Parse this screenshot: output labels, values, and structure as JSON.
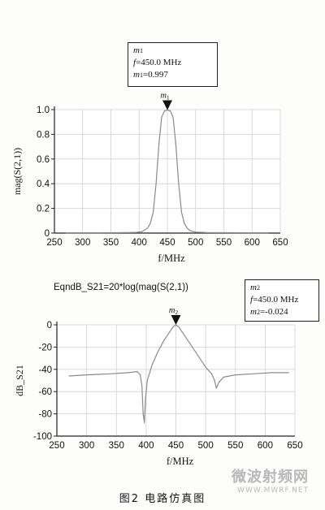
{
  "chart_data": [
    {
      "type": "line",
      "xlabel": "f/MHz",
      "ylabel": "mag(S(2,1))",
      "xlim": [
        250,
        650
      ],
      "ylim": [
        0,
        1.0
      ],
      "xticks": [
        "250",
        "300",
        "350",
        "400",
        "450",
        "500",
        "550",
        "600",
        "650"
      ],
      "yticks": [
        "0",
        "0.2",
        "0.4",
        "0.6",
        "0.8",
        "1.0"
      ],
      "grid": true,
      "series": [
        {
          "x": [
            270,
            300,
            330,
            360,
            380,
            395,
            405,
            415,
            420,
            425,
            430,
            435,
            440,
            445,
            450,
            455,
            460,
            465,
            470,
            475,
            480,
            485,
            490,
            500,
            520,
            550,
            600,
            630
          ],
          "values": [
            0.002,
            0.002,
            0.002,
            0.003,
            0.004,
            0.006,
            0.012,
            0.04,
            0.08,
            0.17,
            0.4,
            0.72,
            0.94,
            0.99,
            0.997,
            0.99,
            0.94,
            0.72,
            0.4,
            0.17,
            0.08,
            0.04,
            0.02,
            0.008,
            0.004,
            0.003,
            0.002,
            0.002
          ]
        }
      ],
      "marker": {
        "name": "m1",
        "name_label": "m",
        "name_sub": "1",
        "freq_label": "f",
        "freq_text": "=450.0  MHz",
        "value_label": "m",
        "value_sub": "1",
        "value_text": "=0.997",
        "x": 450,
        "y": 0.997
      }
    },
    {
      "type": "line",
      "equation": "EqndB_S21=20*log(mag(S(2,1))",
      "xlabel": "f/MHz",
      "ylabel": "dB_S21",
      "xlim": [
        250,
        650
      ],
      "ylim": [
        -100,
        0
      ],
      "xticks": [
        "250",
        "300",
        "350",
        "400",
        "450",
        "500",
        "550",
        "600",
        "650"
      ],
      "yticks": [
        "0",
        "-20",
        "-40",
        "-60",
        "-80",
        "-100"
      ],
      "grid": true,
      "series": [
        {
          "x": [
            270,
            300,
            340,
            370,
            385,
            390,
            393,
            395,
            397,
            399,
            402,
            410,
            420,
            430,
            440,
            445,
            450,
            455,
            460,
            470,
            480,
            490,
            500,
            510,
            515,
            518,
            522,
            530,
            550,
            580,
            610,
            640
          ],
          "values": [
            -46,
            -45,
            -44,
            -43,
            -42,
            -45,
            -55,
            -80,
            -88,
            -66,
            -50,
            -36,
            -24,
            -14,
            -6,
            -2,
            -0.024,
            -2,
            -6,
            -14,
            -22,
            -30,
            -38,
            -44,
            -50,
            -57,
            -52,
            -47,
            -45,
            -44,
            -43,
            -43
          ]
        }
      ],
      "marker": {
        "name": "m2",
        "name_label": "m",
        "name_sub": "2",
        "freq_label": "f",
        "freq_text": "=450.0  MHz",
        "value_label": "m",
        "value_sub": "2",
        "value_text": "=-0.024",
        "x": 450,
        "y": -0.024
      }
    }
  ],
  "caption": "图2   电路仿真图",
  "watermark": {
    "title": "微波射频网",
    "url": "WWW.MWRF.NET"
  }
}
